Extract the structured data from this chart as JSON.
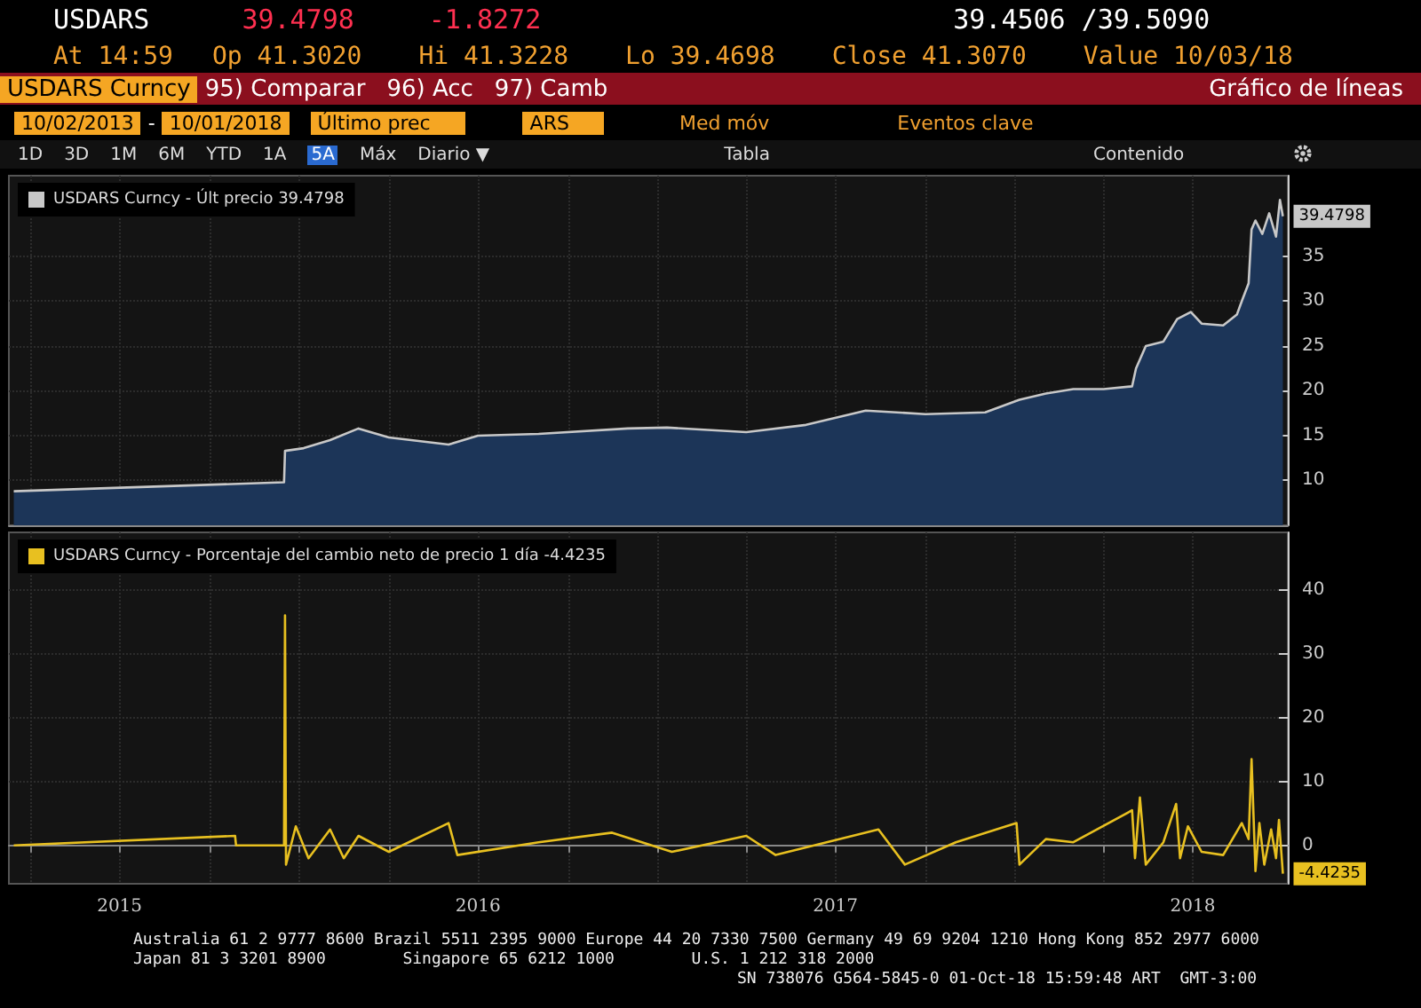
{
  "chart_data": [
    {
      "type": "area",
      "legend": "top left",
      "grid": true,
      "tick_labels": "y",
      "annotations": [
        "USDARS",
        "39.4798",
        "-1.8272",
        "39.4506 /39.5090",
        "At 14:59",
        "Op 41.3020",
        "Hi 41.3228",
        "Lo 39.4698",
        "Close 41.3070",
        "Value 10/03/18",
        "USDARS Curncy",
        "95) Comparar",
        "96) Acc",
        "97) Camb",
        "Gráfico de líneas",
        "10/02/2013",
        "-",
        "10/01/2018",
        "Último prec",
        "ARS",
        "Med móv",
        "Eventos clave",
        "1D",
        "3D",
        "1M",
        "6M",
        "YTD",
        "1A",
        "5A",
        "Máx",
        "Diario ▼",
        "Tabla",
        "Contenido"
      ],
      "xlim": [
        "2015-03-10",
        "2018-10-06"
      ],
      "xticks": [
        {
          "value": "2015-04-01",
          "label": null
        },
        {
          "value": "2015-07-01",
          "label": null
        },
        {
          "value": "2015-10-01",
          "label": null
        },
        {
          "value": "2016-01-01",
          "label": null
        },
        {
          "value": "2016-04-01",
          "label": null
        },
        {
          "value": "2016-07-01",
          "label": null
        },
        {
          "value": "2016-10-01",
          "label": null
        },
        {
          "value": "2017-01-01",
          "label": null
        },
        {
          "value": "2017-04-01",
          "label": null
        },
        {
          "value": "2017-07-01",
          "label": null
        },
        {
          "value": "2017-10-01",
          "label": null
        },
        {
          "value": "2018-01-01",
          "label": null
        },
        {
          "value": "2018-04-01",
          "label": null
        },
        {
          "value": "2018-07-01",
          "label": null
        }
      ],
      "ylim": [
        5,
        44
      ],
      "yticks": [
        10,
        15,
        20,
        25,
        30,
        35
      ],
      "series": [
        {
          "name": "USDARS Curncy - Últ precio 39.4798",
          "color": "#c8c8c8",
          "x": [
            "2015-03-15",
            "2015-12-16",
            "2015-12-17",
            "2016-01-05",
            "2016-02-01",
            "2016-03-01",
            "2016-04-01",
            "2016-06-01",
            "2016-07-01",
            "2016-09-01",
            "2016-12-01",
            "2017-01-10",
            "2017-04-01",
            "2017-06-01",
            "2017-08-01",
            "2017-10-01",
            "2017-12-01",
            "2018-01-05",
            "2018-02-01",
            "2018-03-01",
            "2018-04-01",
            "2018-04-30",
            "2018-05-04",
            "2018-05-14",
            "2018-06-01",
            "2018-06-15",
            "2018-06-29",
            "2018-07-10",
            "2018-08-01",
            "2018-08-15",
            "2018-08-20",
            "2018-08-27",
            "2018-08-30",
            "2018-09-03",
            "2018-09-10",
            "2018-09-17",
            "2018-09-24",
            "2018-09-28",
            "2018-10-01"
          ],
          "values": [
            8.8,
            9.8,
            13.3,
            13.6,
            14.5,
            15.8,
            14.8,
            14.0,
            15.0,
            15.2,
            15.8,
            15.9,
            15.4,
            16.2,
            17.8,
            17.4,
            17.6,
            19.0,
            19.7,
            20.2,
            20.2,
            20.5,
            22.5,
            25.0,
            25.5,
            28.0,
            28.8,
            27.5,
            27.3,
            28.5,
            30.0,
            32.0,
            38.0,
            39.0,
            37.5,
            39.8,
            37.2,
            41.3,
            39.4798
          ],
          "value_labels": [
            null,
            null,
            null,
            null,
            null,
            null,
            null,
            null,
            null,
            null,
            null,
            null,
            null,
            null,
            null,
            null,
            null,
            null,
            null,
            null,
            null,
            null,
            null,
            null,
            null,
            null,
            null,
            null,
            null,
            null,
            null,
            null,
            null,
            null,
            null,
            null,
            null,
            null,
            "39.4798"
          ]
        }
      ]
    },
    {
      "type": "line",
      "legend": "top left",
      "grid": true,
      "annotations": [
        "Australia 61 2 9777 8600 Brazil 5511 2395 9000 Europe 44 20 7330 7500 Germany 49 69 9204 1210 Hong Kong 852 2977 6000",
        "Japan 81 3 3201 8900",
        "Singapore 65 6212 1000",
        "U.S. 1 212 318 2000",
        "SN 738076 G564-5845-0 01-Oct-18 15:59:48 ART  GMT-3:00"
      ],
      "xlim": [
        "2015-03-10",
        "2018-10-06"
      ],
      "xticks": [
        {
          "value": "2015-04-01",
          "label": null
        },
        {
          "value": "2015-07-01",
          "label": "2015"
        },
        {
          "value": "2015-10-01",
          "label": null
        },
        {
          "value": "2016-01-01",
          "label": null
        },
        {
          "value": "2016-04-01",
          "label": null
        },
        {
          "value": "2016-07-01",
          "label": "2016"
        },
        {
          "value": "2016-10-01",
          "label": null
        },
        {
          "value": "2017-01-01",
          "label": null
        },
        {
          "value": "2017-04-01",
          "label": null
        },
        {
          "value": "2017-07-01",
          "label": "2017"
        },
        {
          "value": "2017-10-01",
          "label": null
        },
        {
          "value": "2018-01-01",
          "label": null
        },
        {
          "value": "2018-04-01",
          "label": null
        },
        {
          "value": "2018-07-01",
          "label": "2018"
        }
      ],
      "ylim": [
        -6,
        49
      ],
      "yticks": [
        0,
        10,
        20,
        30,
        40
      ],
      "series": [
        {
          "name": "USDARS Curncy - Porcentaje del cambio neto de precio 1 día -4.4235",
          "color": "#e8c020",
          "x": [
            "2015-03-15",
            "2015-10-27",
            "2015-10-28",
            "2015-12-16",
            "2015-12-17",
            "2015-12-18",
            "2015-12-28",
            "2016-01-10",
            "2016-02-01",
            "2016-02-15",
            "2016-03-01",
            "2016-04-01",
            "2016-06-01",
            "2016-06-10",
            "2016-09-01",
            "2016-11-15",
            "2017-01-15",
            "2017-04-01",
            "2017-05-01",
            "2017-08-14",
            "2017-09-10",
            "2017-11-01",
            "2018-01-02",
            "2018-01-05",
            "2018-02-01",
            "2018-03-01",
            "2018-04-30",
            "2018-05-03",
            "2018-05-08",
            "2018-05-14",
            "2018-06-01",
            "2018-06-14",
            "2018-06-18",
            "2018-06-26",
            "2018-07-10",
            "2018-08-01",
            "2018-08-20",
            "2018-08-27",
            "2018-08-30",
            "2018-09-03",
            "2018-09-07",
            "2018-09-12",
            "2018-09-19",
            "2018-09-24",
            "2018-09-27",
            "2018-10-01"
          ],
          "values": [
            0,
            1.5,
            0,
            0,
            36,
            -3,
            3,
            -2,
            2.5,
            -2,
            1.5,
            -1,
            3.5,
            -1.5,
            0.5,
            2,
            -1,
            1.5,
            -1.5,
            2.5,
            -3,
            0.5,
            3.5,
            -3,
            1,
            0.5,
            5.5,
            -2,
            7.5,
            -3,
            0.5,
            6.5,
            -2,
            3,
            -1,
            -1.5,
            3.5,
            1,
            13.5,
            -4,
            3.5,
            -3,
            2.5,
            -2,
            4,
            -4.4235
          ],
          "value_labels": [
            null,
            null,
            null,
            null,
            null,
            null,
            null,
            null,
            null,
            null,
            null,
            null,
            null,
            null,
            null,
            null,
            null,
            null,
            null,
            null,
            null,
            null,
            null,
            null,
            null,
            null,
            null,
            null,
            null,
            null,
            null,
            null,
            null,
            null,
            null,
            null,
            null,
            null,
            null,
            null,
            null,
            null,
            null,
            null,
            null,
            "-4.4235"
          ]
        }
      ]
    }
  ]
}
